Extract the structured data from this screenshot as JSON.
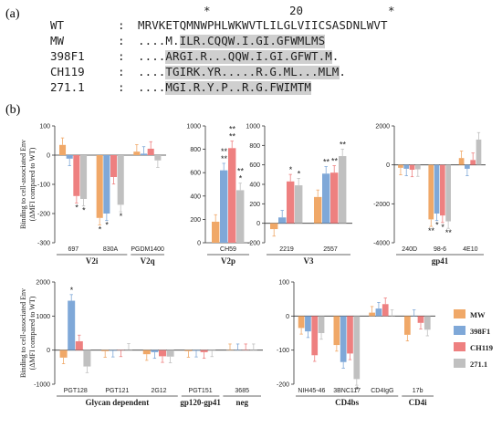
{
  "panel_a": {
    "letter": "(a)",
    "position_marks": [
      "*",
      "20",
      "*"
    ],
    "rows": [
      {
        "name": "WT",
        "sep": ":",
        "seq": "MRVKETQMNWPHLWKWVTLILGLVIICSASDNLWVT",
        "highlight": ""
      },
      {
        "name": "MW",
        "sep": ":",
        "seq": "....M.ILR.CQQW.I.GI.GFWMLMS",
        "highlight": "000000111111111111111111111"
      },
      {
        "name": "398F1",
        "sep": ":",
        "seq": "....ARGI.R...QQW.I.GI.GFWT.M.",
        "highlight": "00001111111111111111111111110"
      },
      {
        "name": "CH119",
        "sep": ":",
        "seq": "....TGIRK.YR.....R.G.ML...MLM.",
        "highlight": "000011111111111111111111111110"
      },
      {
        "name": "271.1",
        "sep": ":",
        "seq": "....MGI.R.Y.P..R.G.FWIMTM",
        "highlight": "0000111111111111111111111"
      }
    ]
  },
  "panel_b": {
    "letter": "(b)",
    "ylabel_line1": "Binding to cell-associated Env",
    "ylabel_line2": "(ΔMFI compared to WT)",
    "legend": [
      {
        "name": "MW",
        "color": "#f0a868"
      },
      {
        "name": "398F1",
        "color": "#7fa8d8"
      },
      {
        "name": "CH119",
        "color": "#ee8080"
      },
      {
        "name": "271.1",
        "color": "#c0c0c0"
      }
    ]
  },
  "chart_data": [
    {
      "type": "bar",
      "categories": [
        "697",
        "830A",
        "PGDM1400"
      ],
      "groups": [
        {
          "label": "V2i",
          "from": 0,
          "to": 1
        },
        {
          "label": "V2q",
          "from": 2,
          "to": 2
        }
      ],
      "series": [
        {
          "name": "MW",
          "values": [
            35,
            -215,
            12
          ]
        },
        {
          "name": "398F1",
          "values": [
            -12,
            -200,
            5
          ]
        },
        {
          "name": "CH119",
          "values": [
            -140,
            -75,
            22
          ]
        },
        {
          "name": "271.1",
          "values": [
            -150,
            -170,
            -18
          ]
        }
      ],
      "ylim": [
        -300,
        100
      ],
      "yticks": [
        -300,
        -200,
        -100,
        0,
        100
      ],
      "stars": [
        {
          "cat": 0,
          "series": 2,
          "text": "*"
        },
        {
          "cat": 0,
          "series": 3,
          "text": "*"
        },
        {
          "cat": 1,
          "series": 0,
          "text": "*"
        },
        {
          "cat": 1,
          "series": 1,
          "text": "*"
        },
        {
          "cat": 1,
          "series": 3,
          "text": "*"
        }
      ]
    },
    {
      "type": "bar",
      "categories": [
        "CH59"
      ],
      "groups": [
        {
          "label": "V2p",
          "from": 0,
          "to": 0
        }
      ],
      "series": [
        {
          "name": "MW",
          "values": [
            180
          ]
        },
        {
          "name": "398F1",
          "values": [
            620
          ]
        },
        {
          "name": "CH119",
          "values": [
            810
          ]
        },
        {
          "name": "271.1",
          "values": [
            450
          ]
        }
      ],
      "ylim": [
        0,
        1000
      ],
      "yticks": [
        0,
        200,
        400,
        600,
        800,
        1000
      ],
      "stars": [
        {
          "cat": 0,
          "series": 1,
          "text": "**"
        },
        {
          "cat": 0,
          "series": 1,
          "text": "**"
        },
        {
          "cat": 0,
          "series": 2,
          "text": "**"
        },
        {
          "cat": 0,
          "series": 2,
          "text": "**"
        },
        {
          "cat": 0,
          "series": 3,
          "text": "*"
        },
        {
          "cat": 0,
          "series": 3,
          "text": "**"
        }
      ]
    },
    {
      "type": "bar",
      "categories": [
        "2219",
        "2557"
      ],
      "groups": [
        {
          "label": "V3",
          "from": 0,
          "to": 1
        }
      ],
      "series": [
        {
          "name": "MW",
          "values": [
            -60,
            270
          ]
        },
        {
          "name": "398F1",
          "values": [
            60,
            510
          ]
        },
        {
          "name": "CH119",
          "values": [
            430,
            520
          ]
        },
        {
          "name": "271.1",
          "values": [
            390,
            690
          ]
        }
      ],
      "ylim": [
        -200,
        1000
      ],
      "yticks": [
        -200,
        0,
        200,
        400,
        600,
        800,
        1000
      ],
      "stars": [
        {
          "cat": 0,
          "series": 2,
          "text": "*"
        },
        {
          "cat": 0,
          "series": 3,
          "text": "*"
        },
        {
          "cat": 1,
          "series": 1,
          "text": "**"
        },
        {
          "cat": 1,
          "series": 2,
          "text": "**"
        },
        {
          "cat": 1,
          "series": 3,
          "text": "**"
        }
      ]
    },
    {
      "type": "bar",
      "categories": [
        "240D",
        "98-6",
        "4E10"
      ],
      "groups": [
        {
          "label": "gp41",
          "from": 0,
          "to": 2
        }
      ],
      "series": [
        {
          "name": "MW",
          "values": [
            -150,
            -2800,
            350
          ]
        },
        {
          "name": "398F1",
          "values": [
            -200,
            -2500,
            -200
          ]
        },
        {
          "name": "CH119",
          "values": [
            -250,
            -2600,
            250
          ]
        },
        {
          "name": "271.1",
          "values": [
            -230,
            -2900,
            1300
          ]
        }
      ],
      "ylim": [
        -4000,
        2000
      ],
      "yticks": [
        -4000,
        -2000,
        0,
        2000
      ],
      "stars": [
        {
          "cat": 1,
          "series": 0,
          "text": "**"
        },
        {
          "cat": 1,
          "series": 1,
          "text": "*"
        },
        {
          "cat": 1,
          "series": 2,
          "text": "*"
        },
        {
          "cat": 1,
          "series": 3,
          "text": "**"
        }
      ]
    },
    {
      "type": "bar",
      "categories": [
        "PGT128",
        "PGT121",
        "2G12",
        "PGT151",
        "3685"
      ],
      "groups": [
        {
          "label": "Glycan dependent",
          "from": 0,
          "to": 2
        },
        {
          "label": "gp120-gp41",
          "from": 3,
          "to": 3
        },
        {
          "label": "neg",
          "from": 4,
          "to": 4
        }
      ],
      "series": [
        {
          "name": "MW",
          "values": [
            -220,
            -30,
            -120,
            -30,
            0
          ]
        },
        {
          "name": "398F1",
          "values": [
            1450,
            -20,
            -60,
            -20,
            0
          ]
        },
        {
          "name": "CH119",
          "values": [
            260,
            -10,
            -180,
            -60,
            0
          ]
        },
        {
          "name": "271.1",
          "values": [
            -480,
            10,
            -190,
            -10,
            0
          ]
        }
      ],
      "ylim": [
        -1000,
        2000
      ],
      "yticks": [
        -1000,
        0,
        1000,
        2000
      ],
      "stars": [
        {
          "cat": 0,
          "series": 1,
          "text": "*"
        }
      ]
    },
    {
      "type": "bar",
      "categories": [
        "NIH45-46",
        "3BNC117",
        "CD4IgG",
        "17b"
      ],
      "groups": [
        {
          "label": "CD4bs",
          "from": 0,
          "to": 2
        },
        {
          "label": "CD4i",
          "from": 3,
          "to": 3
        }
      ],
      "series": [
        {
          "name": "MW",
          "values": [
            -35,
            -85,
            10,
            -55
          ]
        },
        {
          "name": "398F1",
          "values": [
            -45,
            -135,
            22,
            0
          ]
        },
        {
          "name": "CH119",
          "values": [
            -115,
            -110,
            35,
            -20
          ]
        },
        {
          "name": "271.1",
          "values": [
            -50,
            -185,
            0,
            -40
          ]
        }
      ],
      "ylim": [
        -200,
        100
      ],
      "yticks": [
        -200,
        -100,
        0,
        100
      ],
      "stars": [
        {
          "cat": 1,
          "series": 3,
          "text": "*"
        }
      ]
    }
  ]
}
